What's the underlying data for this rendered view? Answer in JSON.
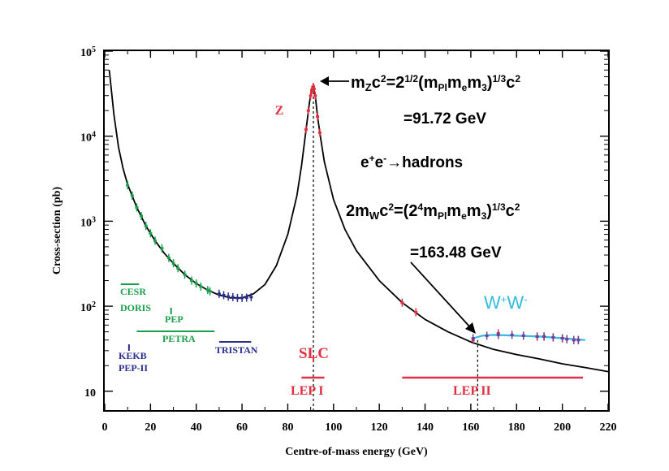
{
  "chart_data": {
    "type": "line",
    "xlabel": "Centre-of-mass energy (GeV)",
    "ylabel": "Cross-section (pb)",
    "xlim": [
      0,
      220
    ],
    "ylim": [
      6,
      100000
    ],
    "yscale": "log",
    "xticks": [
      "0",
      "20",
      "40",
      "60",
      "80",
      "100",
      "120",
      "140",
      "160",
      "180",
      "200",
      "220"
    ],
    "yticks": [
      {
        "value": 10,
        "base": "10",
        "exp": ""
      },
      {
        "value": 100,
        "base": "10",
        "exp": "2"
      },
      {
        "value": 1000,
        "base": "10",
        "exp": "3"
      },
      {
        "value": 10000,
        "base": "10",
        "exp": "4"
      },
      {
        "value": 100000,
        "base": "10",
        "exp": "5"
      }
    ],
    "series": [
      {
        "name": "",
        "color": "#000000",
        "x": [
          2,
          4,
          6,
          8,
          10,
          14,
          18,
          22,
          26,
          30,
          35,
          40,
          45,
          50,
          55,
          60,
          65,
          70,
          75,
          80,
          84,
          86,
          88,
          89.5,
          90.5,
          91.2,
          92,
          93,
          94.5,
          96,
          100,
          105,
          110,
          120,
          130,
          140,
          150,
          160,
          170,
          180,
          190,
          200,
          210,
          220
        ],
        "values": [
          60000,
          18000,
          7500,
          4200,
          2700,
          1450,
          880,
          590,
          420,
          320,
          235,
          185,
          155,
          135,
          125,
          125,
          140,
          180,
          300,
          700,
          2000,
          4500,
          12000,
          25000,
          36000,
          38000,
          30000,
          17000,
          9000,
          5000,
          1800,
          800,
          450,
          200,
          110,
          70,
          50,
          38,
          31,
          27,
          24,
          21,
          19,
          17
        ]
      },
      {
        "name": "W+W-",
        "color": "#33bbe0",
        "x": [
          161,
          165,
          170,
          180,
          190,
          200,
          210
        ],
        "values": [
          42,
          45,
          46,
          45,
          44,
          42,
          40
        ]
      }
    ],
    "measurements": [
      {
        "color": "#1a9e4a",
        "x": [
          10,
          12,
          14,
          16,
          18,
          20,
          22,
          25,
          28,
          30,
          32,
          35,
          38,
          40,
          42,
          45,
          46
        ],
        "values": [
          2650,
          2000,
          1450,
          1150,
          880,
          720,
          590,
          480,
          370,
          320,
          280,
          235,
          200,
          185,
          170,
          155,
          150
        ]
      },
      {
        "color": "#2a2f8f",
        "x": [
          50,
          52,
          54,
          56,
          58,
          60,
          62,
          64
        ],
        "values": [
          140,
          135,
          130,
          128,
          125,
          125,
          126,
          128
        ]
      },
      {
        "color": "#e03040",
        "x": [
          88,
          89,
          90,
          90.5,
          91,
          91.2,
          91.5,
          92,
          93,
          94
        ],
        "values": [
          12000,
          20000,
          30000,
          35000,
          37000,
          38000,
          36000,
          30000,
          17000,
          11000
        ]
      },
      {
        "color": "#e03040",
        "x": [
          130,
          136,
          161,
          172,
          183,
          189,
          192,
          196,
          200,
          202,
          205,
          207
        ],
        "values": [
          110,
          85,
          40,
          48,
          45,
          44,
          44,
          43,
          42,
          41,
          40,
          40
        ]
      },
      {
        "color": "#7040a0",
        "x": [
          161,
          167,
          172,
          178,
          183,
          189,
          192,
          196,
          200,
          202,
          205,
          207
        ],
        "values": [
          42,
          45,
          46,
          46,
          45,
          44,
          44,
          43,
          42,
          41,
          40,
          40
        ]
      }
    ],
    "vlines": [
      91.2,
      163
    ],
    "annotations": {
      "z_label": "Z",
      "z_mass_formula": {
        "a": "m",
        "b": "Z",
        "c": "c",
        "d": "2",
        "e": "=2",
        "f": "1/2",
        "g": "(m",
        "h": "Pl",
        "i": "m",
        "j": "e",
        "k": "m",
        "l": "3",
        "m": ")",
        "n": "1/3",
        "o": "c",
        "p": "2"
      },
      "z_mass_value": "=91.72 GeV",
      "reaction": {
        "a": "e",
        "b": "+",
        "c": "e",
        "d": "-",
        "e": "→hadrons"
      },
      "w_mass_formula": {
        "a": "2m",
        "b": "W",
        "c": "c",
        "d": "2",
        "e": "=(2",
        "f": "4",
        "g": "m",
        "h": "Pl",
        "i": "m",
        "j": "e",
        "k": "m",
        "l": "3",
        "m": ")",
        "n": "1/3",
        "o": "c",
        "p": "2"
      },
      "w_mass_value": "=163.48 GeV",
      "ww_label": {
        "a": "W",
        "b": "+",
        "c": "W",
        "d": "-"
      }
    },
    "colliders": [
      {
        "name": "CESR",
        "color": "#1a9e4a",
        "x": [
          7,
          15
        ]
      },
      {
        "name": "DORIS",
        "color": "#1a9e4a",
        "x": [
          7,
          15
        ]
      },
      {
        "name": "PEP",
        "color": "#1a9e4a",
        "x": [
          29,
          29
        ]
      },
      {
        "name": "PETRA",
        "color": "#1a9e4a",
        "x": [
          14,
          48
        ]
      },
      {
        "name": "TRISTAN",
        "color": "#2a2f8f",
        "x": [
          50,
          64
        ]
      },
      {
        "name": "KEKB",
        "color": "#2a2f8f",
        "x": [
          10.6,
          10.6
        ]
      },
      {
        "name": "PEP-II",
        "color": "#2a2f8f",
        "x": [
          10.6,
          10.6
        ]
      },
      {
        "name": "SLC",
        "color": "#e03040",
        "x": [
          91.2,
          91.2
        ]
      },
      {
        "name": "LEP I",
        "color": "#e03040",
        "x": [
          86,
          96
        ]
      },
      {
        "name": "LEP II",
        "color": "#e03040",
        "x": [
          130,
          209
        ]
      }
    ],
    "grid": false,
    "legend": "none"
  }
}
